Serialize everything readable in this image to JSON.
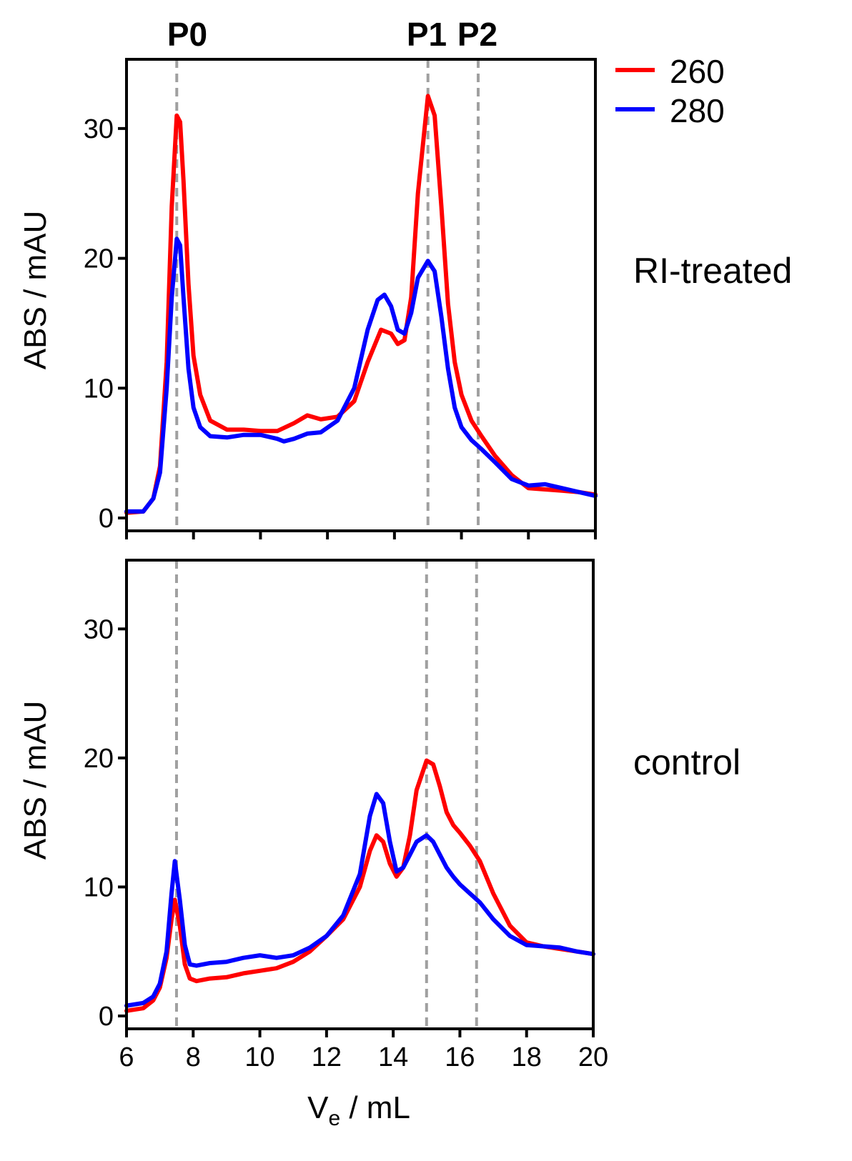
{
  "chart_data": [
    {
      "type": "line",
      "panel_label": "RI-treated",
      "xlabel": "",
      "ylabel": "ABS / mAU",
      "xlim": [
        6,
        20
      ],
      "ylim": [
        0,
        35
      ],
      "yticks": [
        0,
        10,
        20,
        30
      ],
      "xticks": [
        6,
        8,
        10,
        12,
        14,
        16,
        18,
        20
      ],
      "grid": false,
      "reference_lines": [
        {
          "x": 7.5,
          "label": "P0"
        },
        {
          "x": 15.0,
          "label": "P1"
        },
        {
          "x": 16.5,
          "label": "P2"
        }
      ],
      "series": [
        {
          "name": "260",
          "color": "#ff0000",
          "x": [
            6.0,
            6.5,
            6.8,
            7.0,
            7.2,
            7.35,
            7.5,
            7.6,
            7.7,
            7.85,
            8.0,
            8.2,
            8.5,
            9.0,
            9.5,
            10.0,
            10.5,
            11.0,
            11.4,
            11.8,
            12.3,
            12.8,
            13.2,
            13.6,
            13.9,
            14.1,
            14.3,
            14.5,
            14.7,
            15.0,
            15.2,
            15.4,
            15.6,
            15.8,
            16.0,
            16.3,
            16.6,
            17.0,
            17.5,
            18.0,
            18.5,
            19.0,
            19.5,
            20.0
          ],
          "y": [
            0.4,
            0.5,
            1.5,
            4.0,
            12.0,
            24.0,
            31.0,
            30.5,
            26.0,
            18.0,
            12.5,
            9.5,
            7.5,
            6.8,
            6.8,
            6.7,
            6.7,
            7.3,
            7.9,
            7.6,
            7.8,
            9.0,
            12.0,
            14.5,
            14.2,
            13.4,
            13.7,
            17.0,
            25.0,
            32.5,
            31.0,
            24.0,
            16.5,
            12.0,
            9.5,
            7.5,
            6.3,
            4.8,
            3.3,
            2.3,
            2.2,
            2.1,
            2.0,
            1.8
          ]
        },
        {
          "name": "280",
          "color": "#0000ff",
          "x": [
            6.0,
            6.5,
            6.8,
            7.0,
            7.2,
            7.35,
            7.5,
            7.6,
            7.7,
            7.85,
            8.0,
            8.2,
            8.5,
            9.0,
            9.5,
            10.0,
            10.5,
            10.7,
            11.0,
            11.4,
            11.8,
            12.3,
            12.8,
            13.2,
            13.5,
            13.7,
            13.9,
            14.1,
            14.3,
            14.5,
            14.7,
            15.0,
            15.2,
            15.4,
            15.6,
            15.8,
            16.0,
            16.3,
            16.6,
            17.0,
            17.5,
            18.0,
            18.5,
            19.0,
            19.5,
            20.0
          ],
          "y": [
            0.5,
            0.5,
            1.5,
            3.5,
            10.0,
            17.0,
            21.5,
            21.0,
            17.0,
            11.5,
            8.5,
            7.0,
            6.3,
            6.2,
            6.4,
            6.4,
            6.1,
            5.9,
            6.1,
            6.5,
            6.6,
            7.5,
            10.0,
            14.5,
            16.8,
            17.2,
            16.3,
            14.5,
            14.2,
            15.8,
            18.5,
            19.8,
            19.0,
            15.5,
            11.5,
            8.5,
            7.0,
            6.0,
            5.3,
            4.3,
            3.0,
            2.5,
            2.6,
            2.3,
            2.0,
            1.7
          ]
        }
      ]
    },
    {
      "type": "line",
      "panel_label": "control",
      "xlabel": "V_e / mL",
      "ylabel": "ABS / mAU",
      "xlim": [
        6,
        20
      ],
      "ylim": [
        0,
        35
      ],
      "yticks": [
        0,
        10,
        20,
        30
      ],
      "xticks": [
        6,
        8,
        10,
        12,
        14,
        16,
        18,
        20
      ],
      "grid": false,
      "reference_lines": [
        {
          "x": 7.5
        },
        {
          "x": 15.0
        },
        {
          "x": 16.5
        }
      ],
      "series": [
        {
          "name": "260",
          "color": "#ff0000",
          "x": [
            6.0,
            6.5,
            6.8,
            7.0,
            7.2,
            7.35,
            7.45,
            7.6,
            7.75,
            7.9,
            8.1,
            8.5,
            9.0,
            9.5,
            10.0,
            10.5,
            11.0,
            11.5,
            12.0,
            12.5,
            13.0,
            13.3,
            13.5,
            13.7,
            13.9,
            14.1,
            14.3,
            14.5,
            14.7,
            15.0,
            15.2,
            15.4,
            15.6,
            15.8,
            16.0,
            16.3,
            16.6,
            17.0,
            17.5,
            18.0,
            18.5,
            19.0,
            19.5,
            20.0
          ],
          "y": [
            0.4,
            0.6,
            1.2,
            2.2,
            4.5,
            7.5,
            9.0,
            7.0,
            4.0,
            2.9,
            2.7,
            2.9,
            3.0,
            3.3,
            3.5,
            3.7,
            4.2,
            5.0,
            6.2,
            7.5,
            10.0,
            12.8,
            14.0,
            13.5,
            11.8,
            10.8,
            11.5,
            14.0,
            17.5,
            19.8,
            19.5,
            17.8,
            15.8,
            14.8,
            14.2,
            13.2,
            12.0,
            9.5,
            7.0,
            5.7,
            5.4,
            5.2,
            5.0,
            4.8
          ]
        },
        {
          "name": "280",
          "color": "#0000ff",
          "x": [
            6.0,
            6.5,
            6.8,
            7.0,
            7.2,
            7.35,
            7.45,
            7.6,
            7.75,
            7.9,
            8.1,
            8.5,
            9.0,
            9.5,
            10.0,
            10.5,
            11.0,
            11.5,
            12.0,
            12.5,
            13.0,
            13.3,
            13.5,
            13.7,
            13.9,
            14.1,
            14.3,
            14.5,
            14.7,
            15.0,
            15.2,
            15.4,
            15.6,
            15.8,
            16.0,
            16.3,
            16.6,
            17.0,
            17.5,
            18.0,
            18.5,
            19.0,
            19.5,
            20.0
          ],
          "y": [
            0.8,
            1.0,
            1.5,
            2.5,
            5.0,
            9.5,
            12.0,
            9.0,
            5.5,
            4.0,
            3.9,
            4.1,
            4.2,
            4.5,
            4.7,
            4.5,
            4.7,
            5.3,
            6.2,
            7.8,
            11.0,
            15.5,
            17.2,
            16.5,
            13.5,
            11.2,
            11.5,
            12.5,
            13.5,
            14.0,
            13.5,
            12.5,
            11.5,
            10.8,
            10.2,
            9.5,
            8.8,
            7.5,
            6.2,
            5.5,
            5.4,
            5.3,
            5.0,
            4.8
          ]
        }
      ]
    }
  ],
  "legend": {
    "position": "top-right",
    "items": [
      {
        "label": "260",
        "color": "#ff0000"
      },
      {
        "label": "280",
        "color": "#0000ff"
      }
    ]
  },
  "x_axis_title": {
    "main": "V",
    "subscript": "e",
    "rest": " / mL"
  }
}
